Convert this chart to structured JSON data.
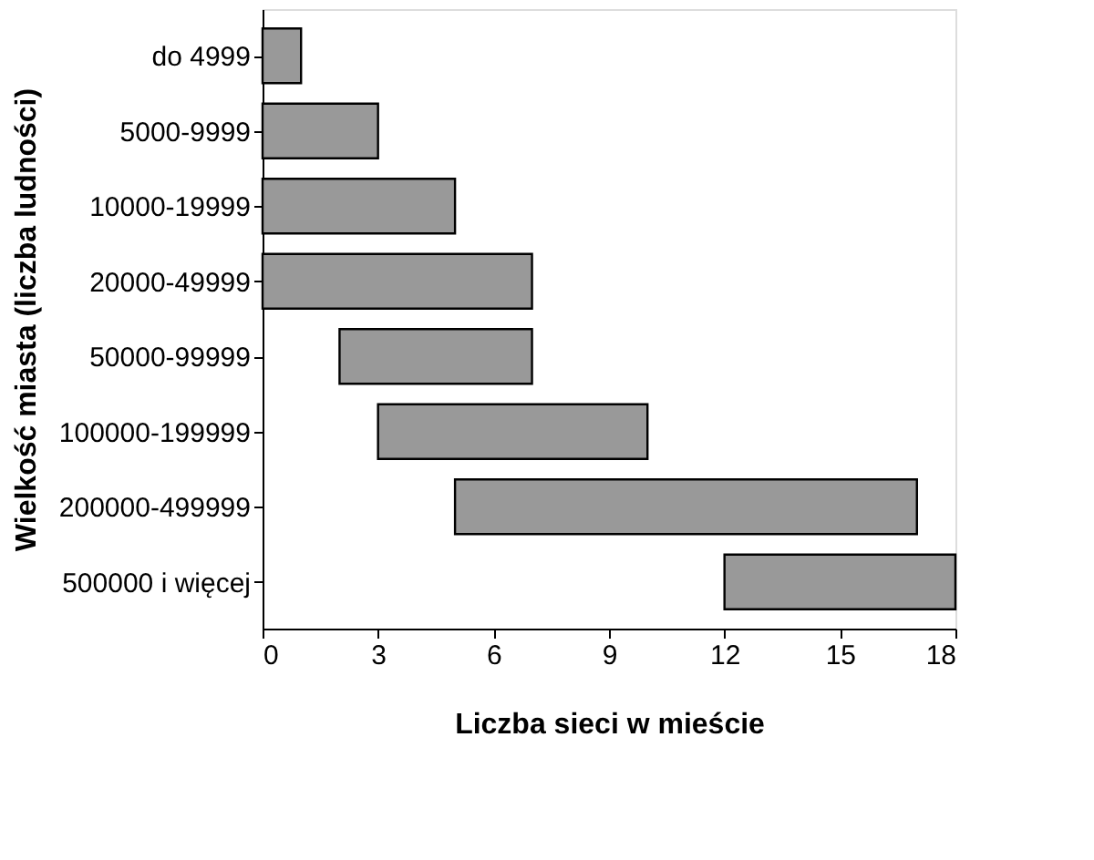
{
  "chart_data": {
    "type": "bar",
    "orientation": "horizontal",
    "xlabel": "Liczba sieci w mieście",
    "ylabel": "Wielkość miasta (liczba ludności)",
    "categories": [
      "do 4999",
      "5000-9999",
      "10000-19999",
      "20000-49999",
      "50000-99999",
      "100000-199999",
      "200000-499999",
      "500000 i więcej"
    ],
    "base": [
      0,
      0,
      0,
      0,
      2,
      3,
      5,
      12
    ],
    "values": [
      1,
      3,
      5,
      7,
      5,
      7,
      12,
      6
    ],
    "color": "#999999",
    "xlim": [
      0,
      18
    ],
    "xticks": [
      0,
      3,
      6,
      9,
      12,
      15,
      18
    ],
    "grid": false
  }
}
